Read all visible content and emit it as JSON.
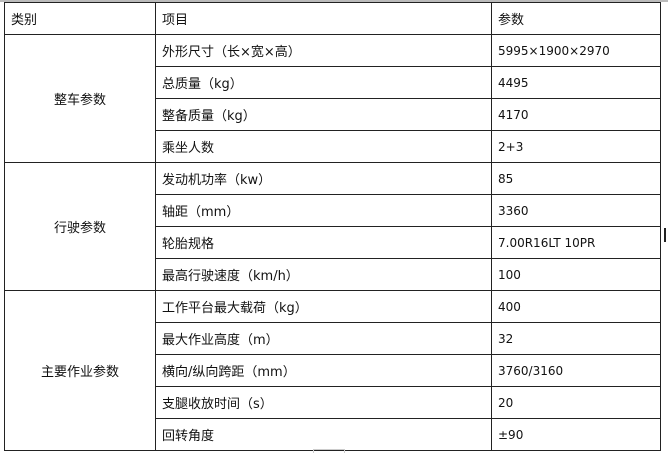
{
  "header": {
    "category": "类别",
    "item": "项目",
    "param": "参数"
  },
  "groups": [
    {
      "category": "整车参数",
      "rows": [
        {
          "item": "外形尺寸（长×宽×高）",
          "value": "5995×1900×2970"
        },
        {
          "item": "总质量（kg）",
          "value": "4495"
        },
        {
          "item": "整备质量（kg）",
          "value": "4170"
        },
        {
          "item": "乘坐人数",
          "value": "2+3"
        }
      ]
    },
    {
      "category": "行驶参数",
      "rows": [
        {
          "item": "发动机功率（kw）",
          "value": "85"
        },
        {
          "item": "轴距（mm）",
          "value": "3360"
        },
        {
          "item": "轮胎规格",
          "value": "7.00R16LT 10PR"
        },
        {
          "item": "最高行驶速度（km/h）",
          "value": "100"
        }
      ]
    },
    {
      "category": "主要作业参数",
      "rows": [
        {
          "item": "工作平台最大载荷（kg）",
          "value": "400"
        },
        {
          "item": "最大作业高度（m）",
          "value": "32"
        },
        {
          "item": "横向/纵向跨距（mm）",
          "value": "3760/3160"
        },
        {
          "item": "支腿收放时间（s）",
          "value": "20"
        },
        {
          "item": "回转角度",
          "value": "±90"
        }
      ]
    }
  ]
}
